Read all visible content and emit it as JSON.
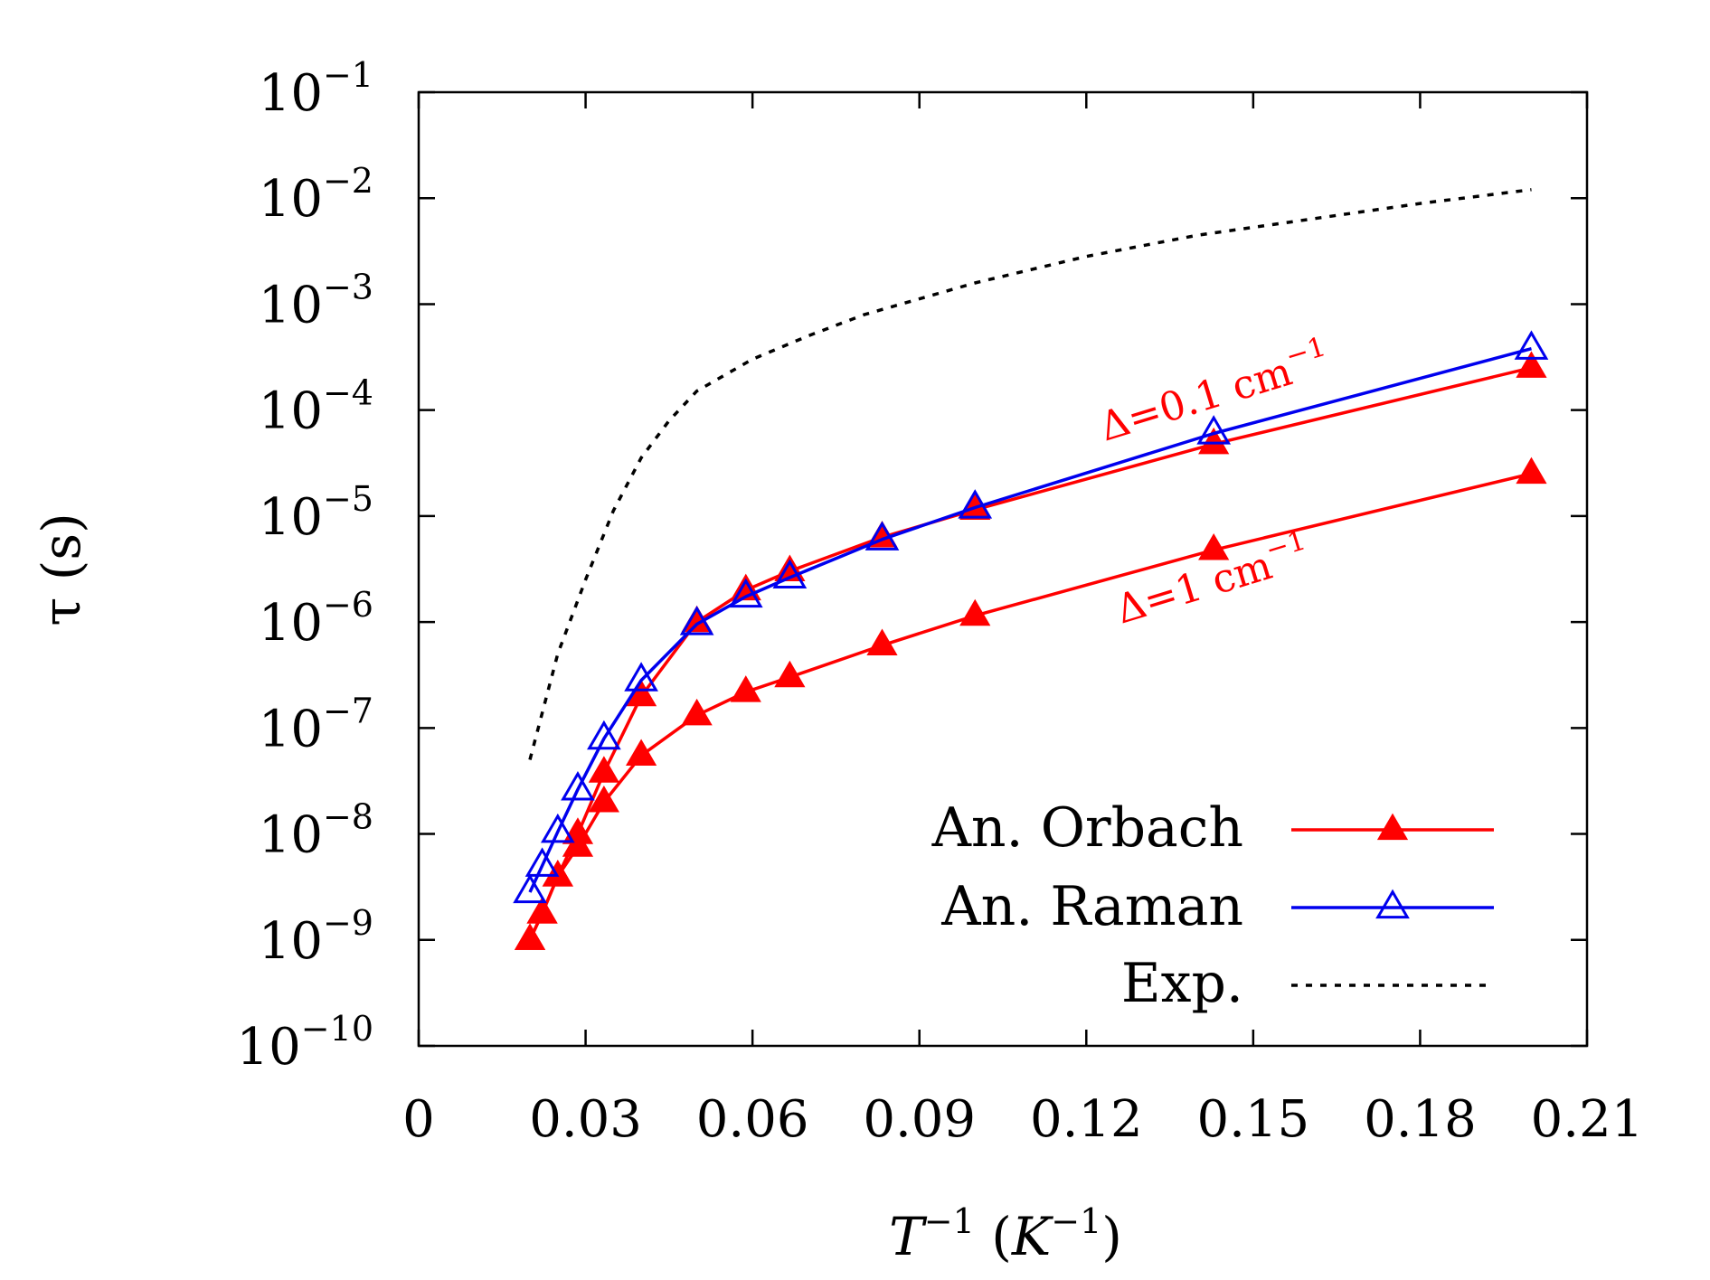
{
  "chart_data": {
    "type": "line",
    "title": "",
    "xlabel": {
      "base": "T",
      "sup": "−1",
      "unit_open": " (",
      "unit_base": "K",
      "unit_sup": "−1",
      "unit_close": ")"
    },
    "ylabel": "τ (s)",
    "xlim": [
      0,
      0.21
    ],
    "ylim_exp": [
      -10,
      -1
    ],
    "y_scale": "log",
    "x_ticks": [
      "0",
      "0.03",
      "0.06",
      "0.09",
      "0.12",
      "0.15",
      "0.18",
      "0.21"
    ],
    "y_ticks": [
      {
        "base": "10",
        "exp": "−1",
        "value": -1
      },
      {
        "base": "10",
        "exp": "−2",
        "value": -2
      },
      {
        "base": "10",
        "exp": "−3",
        "value": -3
      },
      {
        "base": "10",
        "exp": "−4",
        "value": -4
      },
      {
        "base": "10",
        "exp": "−5",
        "value": -5
      },
      {
        "base": "10",
        "exp": "−6",
        "value": -6
      },
      {
        "base": "10",
        "exp": "−7",
        "value": -7
      },
      {
        "base": "10",
        "exp": "−8",
        "value": -8
      },
      {
        "base": "10",
        "exp": "−9",
        "value": -9
      },
      {
        "base": "10",
        "exp": "−10",
        "value": -10
      }
    ],
    "series": [
      {
        "name": "An. Orbach",
        "label": "Δ=0.1 cm",
        "label_sup": "−1",
        "color": "#ff0000",
        "marker": "filled-triangle",
        "x": [
          0.02,
          0.0222,
          0.025,
          0.0286,
          0.0333,
          0.04,
          0.05,
          0.0588,
          0.0667,
          0.0833,
          0.1,
          0.1429,
          0.2
        ],
        "log_y": [
          -9.0,
          -8.75,
          -8.4,
          -8.0,
          -7.42,
          -6.7,
          -6.0,
          -5.7,
          -5.52,
          -5.2,
          -4.94,
          -4.32,
          -3.6
        ]
      },
      {
        "name": "An. Orbach",
        "label": "Δ=1 cm",
        "label_sup": "−1",
        "color": "#ff0000",
        "marker": "filled-triangle",
        "x": [
          0.02,
          0.0222,
          0.025,
          0.0286,
          0.0333,
          0.04,
          0.05,
          0.0588,
          0.0667,
          0.0833,
          0.1,
          0.1429,
          0.2
        ],
        "log_y": [
          -9.0,
          -8.75,
          -8.4,
          -8.12,
          -7.7,
          -7.26,
          -6.88,
          -6.66,
          -6.52,
          -6.22,
          -5.94,
          -5.32,
          -4.6
        ]
      },
      {
        "name": "An. Raman",
        "color": "#0000ee",
        "marker": "open-triangle",
        "x": [
          0.02,
          0.0222,
          0.025,
          0.0286,
          0.0333,
          0.04,
          0.05,
          0.0588,
          0.0667,
          0.0833,
          0.1,
          0.1429,
          0.2
        ],
        "log_y": [
          -8.55,
          -8.3,
          -7.98,
          -7.58,
          -7.1,
          -6.55,
          -6.02,
          -5.76,
          -5.58,
          -5.22,
          -4.92,
          -4.22,
          -3.42
        ]
      },
      {
        "name": "Exp.",
        "color": "#000000",
        "marker": "none",
        "dash": "dotted",
        "x": [
          0.02,
          0.025,
          0.03,
          0.035,
          0.04,
          0.045,
          0.05,
          0.06,
          0.07,
          0.08,
          0.1,
          0.12,
          0.14,
          0.16,
          0.18,
          0.2
        ],
        "log_y": [
          -7.3,
          -6.3,
          -5.6,
          -4.95,
          -4.45,
          -4.1,
          -3.82,
          -3.52,
          -3.3,
          -3.1,
          -2.8,
          -2.55,
          -2.35,
          -2.2,
          -2.05,
          -1.92
        ]
      }
    ],
    "legend": {
      "position": "bottom-right",
      "entries": [
        {
          "label": "An. Orbach",
          "color": "#ff0000",
          "marker": "filled-triangle"
        },
        {
          "label": "An. Raman",
          "color": "#0000ee",
          "marker": "open-triangle"
        },
        {
          "label": "Exp.",
          "color": "#000000",
          "marker": "none",
          "dash": "dotted"
        }
      ]
    }
  }
}
